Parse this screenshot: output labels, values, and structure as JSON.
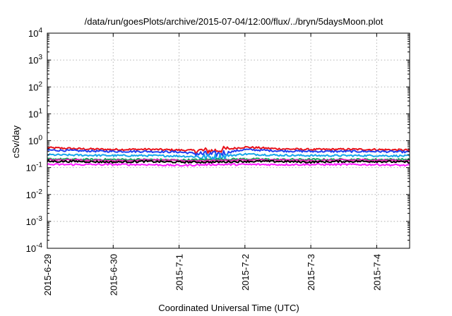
{
  "chart_data": {
    "type": "line",
    "title": "/data/run/goesPlots/archive/2015-07-04/12:00/flux/../bryn/5daysMoon.plot",
    "xlabel": "Coordinated Universal Time (UTC)",
    "ylabel": "cSv/day",
    "yscale": "log",
    "ylim": [
      0.0001,
      10000
    ],
    "xlim": [
      "2015-06-29",
      "2015-07-04 12:00"
    ],
    "x_tick_labels": [
      "2015-6-29",
      "2015-6-30",
      "2015-7-1",
      "2015-7-2",
      "2015-7-3",
      "2015-7-4"
    ],
    "y_tick_labels": [
      {
        "base": "10",
        "exp": "-4"
      },
      {
        "base": "10",
        "exp": "-3"
      },
      {
        "base": "10",
        "exp": "-2"
      },
      {
        "base": "10",
        "exp": "-1"
      },
      {
        "base": "10",
        "exp": "0"
      },
      {
        "base": "10",
        "exp": "1"
      },
      {
        "base": "10",
        "exp": "2"
      },
      {
        "base": "10",
        "exp": "3"
      },
      {
        "base": "10",
        "exp": "4"
      }
    ],
    "grid": true,
    "series": [
      {
        "color": "#e8121a",
        "x": [
          "2015-06-29",
          "2015-06-29 12:00",
          "2015-06-30",
          "2015-06-30 12:00",
          "2015-07-01",
          "2015-07-01 12:00",
          "2015-07-02",
          "2015-07-02 12:00",
          "2015-07-03",
          "2015-07-03 12:00",
          "2015-07-04",
          "2015-07-04 12:00"
        ],
        "values": [
          0.55,
          0.5,
          0.47,
          0.48,
          0.45,
          0.42,
          0.58,
          0.5,
          0.47,
          0.48,
          0.47,
          0.45
        ]
      },
      {
        "color": "#1f3ff0",
        "x": [
          "2015-06-29",
          "2015-06-29 12:00",
          "2015-06-30",
          "2015-06-30 12:00",
          "2015-07-01",
          "2015-07-01 12:00",
          "2015-07-02",
          "2015-07-02 12:00",
          "2015-07-03",
          "2015-07-03 12:00",
          "2015-07-04",
          "2015-07-04 12:00"
        ],
        "values": [
          0.45,
          0.42,
          0.4,
          0.4,
          0.38,
          0.3,
          0.47,
          0.42,
          0.4,
          0.4,
          0.4,
          0.38
        ]
      },
      {
        "color": "#17a7ea",
        "x": [
          "2015-06-29",
          "2015-06-29 12:00",
          "2015-06-30",
          "2015-06-30 12:00",
          "2015-07-01",
          "2015-07-01 12:00",
          "2015-07-02",
          "2015-07-02 12:00",
          "2015-07-03",
          "2015-07-03 12:00",
          "2015-07-04",
          "2015-07-04 12:00"
        ],
        "values": [
          0.3,
          0.29,
          0.28,
          0.28,
          0.27,
          0.24,
          0.32,
          0.29,
          0.28,
          0.28,
          0.28,
          0.27
        ]
      },
      {
        "color": "#1aa05a",
        "x": [
          "2015-06-29",
          "2015-06-29 12:00",
          "2015-06-30",
          "2015-06-30 12:00",
          "2015-07-01",
          "2015-07-01 12:00",
          "2015-07-02",
          "2015-07-02 12:00",
          "2015-07-03",
          "2015-07-03 12:00",
          "2015-07-04",
          "2015-07-04 12:00"
        ],
        "values": [
          0.21,
          0.2,
          0.2,
          0.2,
          0.19,
          0.2,
          0.21,
          0.2,
          0.2,
          0.2,
          0.2,
          0.2
        ]
      },
      {
        "color": "#e020b0",
        "x": [
          "2015-06-29",
          "2015-06-29 12:00",
          "2015-06-30",
          "2015-06-30 12:00",
          "2015-07-01",
          "2015-07-01 12:00",
          "2015-07-02",
          "2015-07-02 12:00",
          "2015-07-03",
          "2015-07-03 12:00",
          "2015-07-04",
          "2015-07-04 12:00"
        ],
        "values": [
          0.19,
          0.19,
          0.18,
          0.19,
          0.18,
          0.18,
          0.19,
          0.19,
          0.18,
          0.19,
          0.19,
          0.18
        ]
      },
      {
        "color": "#000000",
        "x": [
          "2015-06-29",
          "2015-06-29 12:00",
          "2015-06-30",
          "2015-06-30 12:00",
          "2015-07-01",
          "2015-07-01 12:00",
          "2015-07-02",
          "2015-07-02 12:00",
          "2015-07-03",
          "2015-07-03 12:00",
          "2015-07-04",
          "2015-07-04 12:00"
        ],
        "values": [
          0.17,
          0.17,
          0.16,
          0.17,
          0.16,
          0.16,
          0.17,
          0.17,
          0.16,
          0.17,
          0.17,
          0.16
        ]
      },
      {
        "color": "#ff20ff",
        "x": [
          "2015-06-29",
          "2015-06-29 12:00",
          "2015-06-30",
          "2015-06-30 12:00",
          "2015-07-01",
          "2015-07-01 12:00",
          "2015-07-02",
          "2015-07-02 12:00",
          "2015-07-03",
          "2015-07-03 12:00",
          "2015-07-04",
          "2015-07-04 12:00"
        ],
        "values": [
          0.13,
          0.13,
          0.13,
          0.13,
          0.12,
          0.13,
          0.13,
          0.13,
          0.13,
          0.13,
          0.13,
          0.12
        ]
      }
    ]
  }
}
